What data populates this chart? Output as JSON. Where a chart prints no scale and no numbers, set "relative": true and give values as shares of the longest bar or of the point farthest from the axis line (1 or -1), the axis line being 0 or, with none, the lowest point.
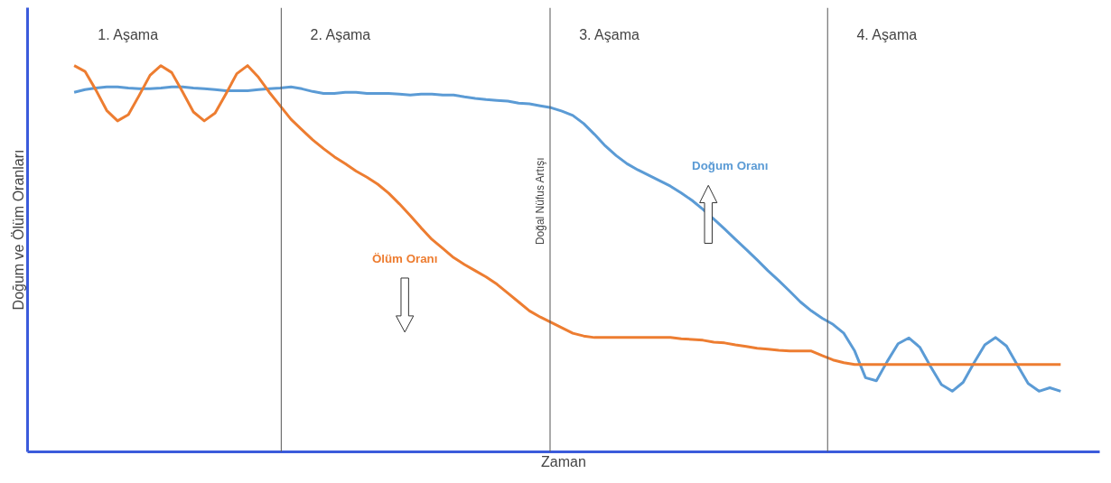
{
  "chart_data": {
    "type": "line",
    "relative": true,
    "xlabel": "Zaman",
    "ylabel": "Doğum ve Ölüm Oranları",
    "annotations": [
      "1. Aşama",
      "2. Aşama",
      "3. Aşama",
      "4. Aşama",
      "Doğal Nüfus Artışı"
    ],
    "categories": [
      null,
      null,
      null,
      null,
      null,
      null,
      null,
      null,
      null,
      null,
      null,
      null,
      null,
      null,
      null,
      null,
      null,
      null,
      null,
      null,
      null,
      null,
      null,
      null,
      null,
      null,
      null,
      null,
      null,
      null,
      null,
      null,
      null,
      null,
      null,
      null,
      null,
      null,
      null,
      null,
      null,
      null,
      null,
      null,
      null,
      null,
      null,
      null,
      null,
      null,
      null,
      null,
      null,
      null,
      null,
      null,
      null,
      null,
      null,
      null,
      null,
      null,
      null,
      null,
      null,
      null,
      null,
      null,
      null,
      null,
      null,
      null,
      null,
      null,
      null,
      null,
      null,
      null,
      null,
      null,
      null,
      null,
      null,
      null,
      null,
      null,
      null,
      null,
      null,
      null,
      null,
      null
    ],
    "series": [
      {
        "name": "Doğum Oranı",
        "color": "#5b9bd5",
        "values": [
          0.931,
          0.938,
          0.942,
          0.945,
          0.945,
          0.942,
          0.94,
          0.94,
          0.942,
          0.945,
          0.945,
          0.942,
          0.94,
          0.938,
          0.935,
          0.935,
          0.935,
          0.938,
          0.94,
          0.942,
          0.945,
          0.94,
          0.933,
          0.928,
          0.928,
          0.931,
          0.931,
          0.928,
          0.928,
          0.928,
          0.926,
          0.924,
          0.926,
          0.926,
          0.924,
          0.924,
          0.919,
          0.915,
          0.912,
          0.91,
          0.908,
          0.903,
          0.901,
          0.896,
          0.891,
          0.882,
          0.871,
          0.85,
          0.822,
          0.792,
          0.767,
          0.746,
          0.73,
          0.716,
          0.702,
          0.688,
          0.67,
          0.651,
          0.628,
          0.603,
          0.577,
          0.55,
          0.524,
          0.497,
          0.469,
          0.443,
          0.416,
          0.388,
          0.365,
          0.346,
          0.33,
          0.307,
          0.261,
          0.192,
          0.184,
          0.234,
          0.28,
          0.295,
          0.271,
          0.221,
          0.174,
          0.157,
          0.18,
          0.23,
          0.277,
          0.296,
          0.274,
          0.225,
          0.177,
          0.157,
          0.166,
          0.157
        ]
      },
      {
        "name": "Ölüm Oranı",
        "color": "#ed7d31",
        "values": [
          1,
          0.985,
          0.937,
          0.884,
          0.857,
          0.873,
          0.923,
          0.975,
          1,
          0.982,
          0.932,
          0.88,
          0.857,
          0.877,
          0.927,
          0.979,
          1,
          0.97,
          0.931,
          0.896,
          0.861,
          0.834,
          0.808,
          0.785,
          0.764,
          0.746,
          0.727,
          0.711,
          0.693,
          0.67,
          0.642,
          0.612,
          0.58,
          0.55,
          0.527,
          0.503,
          0.485,
          0.469,
          0.453,
          0.434,
          0.411,
          0.388,
          0.365,
          0.349,
          0.335,
          0.321,
          0.307,
          0.3,
          0.296,
          0.296,
          0.296,
          0.296,
          0.296,
          0.296,
          0.296,
          0.296,
          0.293,
          0.291,
          0.289,
          0.284,
          0.282,
          0.277,
          0.273,
          0.268,
          0.266,
          0.263,
          0.261,
          0.261,
          0.261,
          0.249,
          0.238,
          0.231,
          0.226,
          0.226,
          0.226,
          0.226,
          0.226,
          0.226,
          0.226,
          0.226,
          0.226,
          0.226,
          0.226,
          0.226,
          0.226,
          0.226,
          0.226,
          0.226,
          0.226,
          0.226,
          0.226,
          0.226
        ]
      }
    ]
  }
}
